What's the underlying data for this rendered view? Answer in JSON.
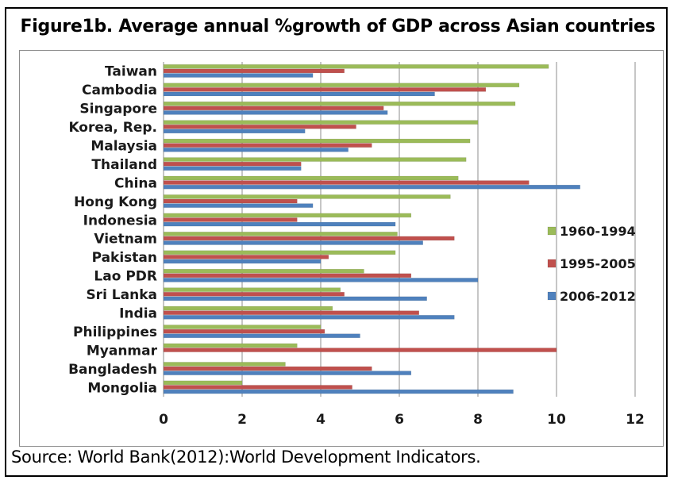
{
  "title": "Figure1b. Average annual %growth of GDP across Asian countries",
  "source": "Source: World Bank(2012):World Development Indicators.",
  "colors": {
    "series_1960_1994": "#9bbb59",
    "series_1995_2005": "#c0504d",
    "series_2006_2012": "#4f81bd"
  },
  "chart_data": {
    "type": "bar",
    "orientation": "horizontal",
    "title": "Figure1b. Average annual %growth of GDP across Asian countries",
    "xlabel": "",
    "ylabel": "",
    "xlim": [
      0,
      12
    ],
    "xticks": [
      0,
      2,
      4,
      6,
      8,
      10,
      12
    ],
    "grid": "vertical gridlines",
    "legend_position": "right",
    "categories": [
      "Taiwan",
      "Cambodia",
      "Singapore",
      "Korea, Rep.",
      "Malaysia",
      "Thailand",
      "China",
      "Hong Kong",
      "Indonesia",
      "Vietnam",
      "Pakistan",
      "Lao PDR",
      "Sri Lanka",
      "India",
      "Philippines",
      "Myanmar",
      "Bangladesh",
      "Mongolia"
    ],
    "series": [
      {
        "name": "1960-1994",
        "values": [
          9.8,
          9.05,
          8.95,
          8.0,
          7.8,
          7.7,
          7.5,
          7.3,
          6.3,
          5.95,
          5.9,
          5.1,
          4.5,
          4.3,
          4.0,
          3.4,
          3.1,
          2.0
        ]
      },
      {
        "name": "1995-2005",
        "values": [
          4.6,
          8.2,
          5.6,
          4.9,
          5.3,
          3.5,
          9.3,
          3.4,
          3.4,
          7.4,
          4.2,
          6.3,
          4.6,
          6.5,
          4.1,
          10.0,
          5.3,
          4.8
        ]
      },
      {
        "name": "2006-2012",
        "values": [
          3.8,
          6.9,
          5.7,
          3.6,
          4.7,
          3.5,
          10.6,
          3.8,
          5.9,
          6.6,
          4.0,
          8.0,
          6.7,
          7.4,
          5.0,
          0.0,
          6.3,
          8.9
        ]
      }
    ]
  }
}
